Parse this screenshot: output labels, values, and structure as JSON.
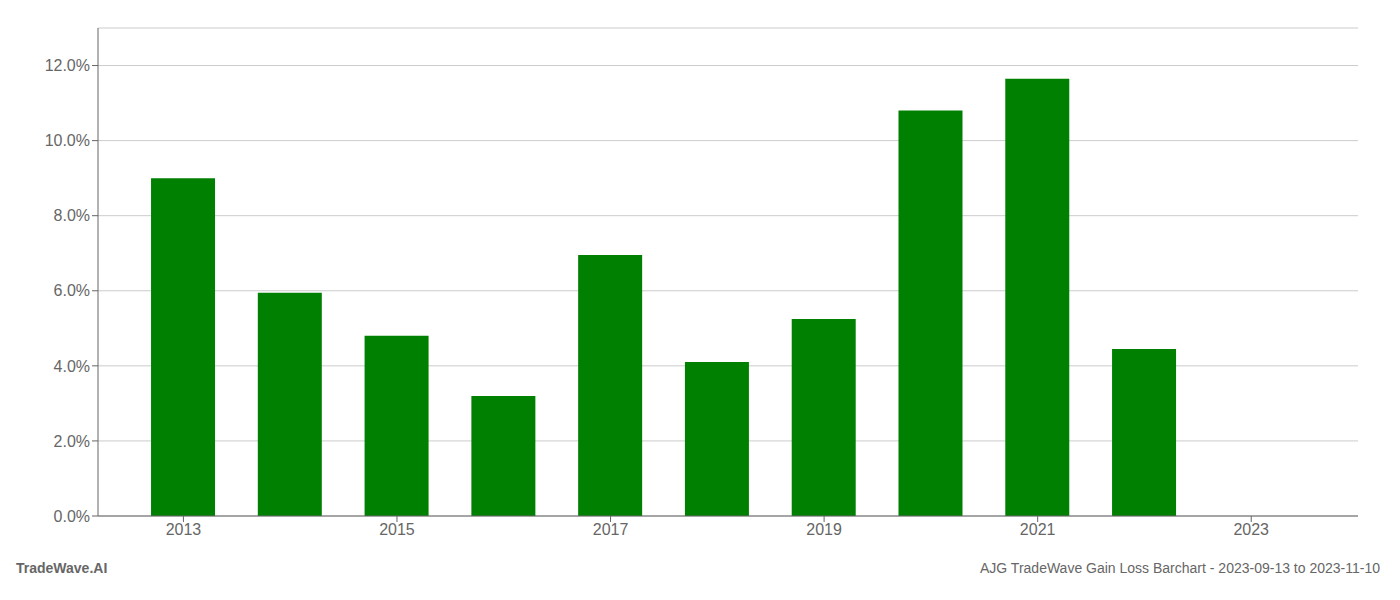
{
  "chart_data": {
    "type": "bar",
    "x": [
      2013,
      2014,
      2015,
      2016,
      2017,
      2018,
      2019,
      2020,
      2021,
      2022
    ],
    "values": [
      0.09,
      0.0595,
      0.048,
      0.032,
      0.0695,
      0.041,
      0.0525,
      0.108,
      0.1165,
      0.0445
    ],
    "color": "#008000",
    "xlim": [
      2012.2,
      2024.0
    ],
    "xticks": [
      2013,
      2015,
      2017,
      2019,
      2021,
      2023
    ],
    "ylim": [
      0,
      0.13
    ],
    "yticks": [
      {
        "value": 0.0,
        "label": "0.0%"
      },
      {
        "value": 0.02,
        "label": "2.0%"
      },
      {
        "value": 0.04,
        "label": "4.0%"
      },
      {
        "value": 0.06,
        "label": "6.0%"
      },
      {
        "value": 0.08,
        "label": "8.0%"
      },
      {
        "value": 0.1,
        "label": "10.0%"
      },
      {
        "value": 0.12,
        "label": "12.0%"
      }
    ],
    "grid": true,
    "annotations": [
      "TradeWave.AI",
      "AJG TradeWave Gain Loss Barchart - 2023-09-13 to 2023-11-10"
    ]
  }
}
